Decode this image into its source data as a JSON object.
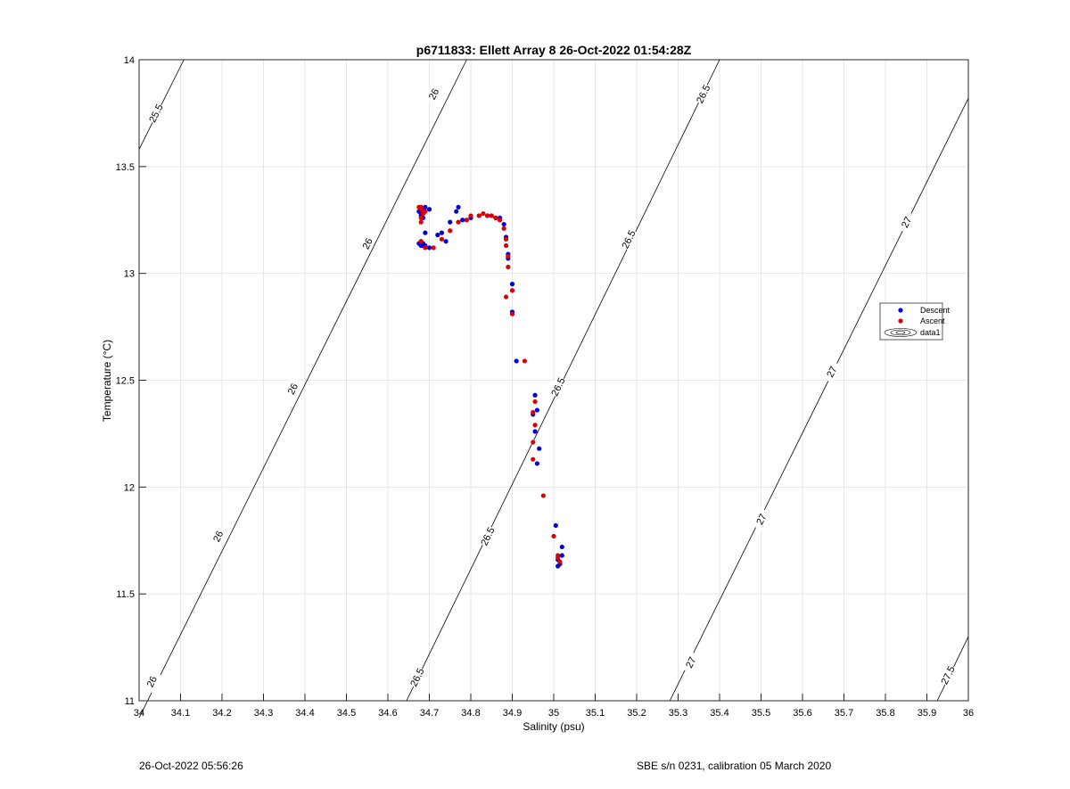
{
  "chart_data": {
    "type": "scatter",
    "title": "p6711833: Ellett Array 8 26-Oct-2022 01:54:28Z",
    "xlabel": "Salinity (psu)",
    "ylabel": "Temperature (°C)",
    "xlim": [
      34,
      36
    ],
    "ylim": [
      11,
      14
    ],
    "grid": true,
    "x_ticks": [
      "34",
      "34.1",
      "34.2",
      "34.3",
      "34.4",
      "34.5",
      "34.6",
      "34.7",
      "34.8",
      "34.9",
      "35",
      "35.1",
      "35.2",
      "35.3",
      "35.4",
      "35.5",
      "35.6",
      "35.7",
      "35.8",
      "35.9",
      "36"
    ],
    "y_ticks": [
      "11",
      "11.5",
      "12",
      "12.5",
      "13",
      "13.5",
      "14"
    ],
    "legend": {
      "placement": "right",
      "entries": [
        "Descent",
        "Ascent",
        "data1"
      ]
    },
    "colors": {
      "descent": "#0000dd",
      "ascent": "#dd0000",
      "contour": "#000000",
      "grid": "#e6e6e6"
    },
    "contours": [
      {
        "label": "25.5",
        "points": [
          [
            34.0,
            13.58
          ],
          [
            34.108,
            14.0
          ]
        ],
        "label_positions": [
          [
            34.04,
            13.75
          ]
        ]
      },
      {
        "label": "26",
        "points": [
          [
            34.0,
            10.92
          ],
          [
            34.79,
            14.0
          ]
        ],
        "label_positions": [
          [
            34.03,
            11.09
          ],
          [
            34.19,
            11.77
          ],
          [
            34.37,
            12.46
          ],
          [
            34.55,
            13.14
          ],
          [
            34.71,
            13.84
          ]
        ]
      },
      {
        "label": "26.5",
        "points": [
          [
            34.645,
            11.0
          ],
          [
            35.4,
            14.0
          ]
        ],
        "label_positions": [
          [
            34.67,
            11.11
          ],
          [
            34.84,
            11.77
          ],
          [
            35.01,
            12.47
          ],
          [
            35.18,
            13.16
          ],
          [
            35.36,
            13.84
          ]
        ]
      },
      {
        "label": "27",
        "points": [
          [
            35.28,
            11.0
          ],
          [
            36.0,
            13.82
          ]
        ],
        "label_positions": [
          [
            35.33,
            11.18
          ],
          [
            35.5,
            11.85
          ],
          [
            35.67,
            12.54
          ],
          [
            35.85,
            13.24
          ]
        ]
      },
      {
        "label": "27.5",
        "points": [
          [
            35.925,
            11.0
          ],
          [
            36.0,
            11.3
          ]
        ],
        "label_positions": [
          [
            35.95,
            11.12
          ]
        ]
      }
    ],
    "series": [
      {
        "name": "Descent",
        "x": [
          35.01,
          35.015,
          35.01,
          35.02,
          35.02,
          35.005,
          34.96,
          34.965,
          34.955,
          34.95,
          34.96,
          34.955,
          34.91,
          34.9,
          34.9,
          34.9,
          34.89,
          34.89,
          34.885,
          34.88,
          34.87,
          34.86,
          34.85,
          34.84,
          34.82,
          34.8,
          34.78,
          34.77,
          34.765,
          34.75,
          34.74,
          34.73,
          34.72,
          34.7,
          34.69,
          34.685,
          34.68,
          34.675,
          34.68,
          34.685,
          34.69,
          34.685,
          34.68,
          34.68,
          34.675,
          34.685,
          34.7,
          34.69,
          34.68
        ],
        "y": [
          11.63,
          11.64,
          11.66,
          11.68,
          11.72,
          11.82,
          12.11,
          12.18,
          12.26,
          12.34,
          12.36,
          12.43,
          12.59,
          12.82,
          12.92,
          12.95,
          13.09,
          13.07,
          13.17,
          13.23,
          13.26,
          13.26,
          13.27,
          13.27,
          13.27,
          13.26,
          13.25,
          13.31,
          13.29,
          13.24,
          13.15,
          13.19,
          13.18,
          13.12,
          13.13,
          13.14,
          13.15,
          13.14,
          13.13,
          13.13,
          13.19,
          13.26,
          13.27,
          13.28,
          13.29,
          13.3,
          13.3,
          13.31,
          13.31
        ]
      },
      {
        "name": "Ascent",
        "x": [
          35.015,
          35.01,
          35.01,
          35.0,
          34.975,
          34.95,
          34.95,
          34.955,
          34.95,
          34.955,
          34.93,
          34.9,
          34.9,
          34.885,
          34.89,
          34.89,
          34.885,
          34.885,
          34.88,
          34.87,
          34.86,
          34.85,
          34.84,
          34.83,
          34.82,
          34.8,
          34.79,
          34.77,
          34.75,
          34.73,
          34.71,
          34.69,
          34.68,
          34.68,
          34.68,
          34.685,
          34.69,
          34.68,
          34.675,
          34.68
        ],
        "y": [
          11.65,
          11.67,
          11.68,
          11.77,
          11.96,
          12.13,
          12.21,
          12.29,
          12.35,
          12.4,
          12.59,
          12.81,
          12.92,
          12.89,
          13.03,
          13.08,
          13.13,
          13.16,
          13.21,
          13.25,
          13.26,
          13.27,
          13.27,
          13.28,
          13.27,
          13.27,
          13.25,
          13.24,
          13.2,
          13.16,
          13.12,
          13.12,
          13.15,
          13.24,
          13.26,
          13.28,
          13.29,
          13.3,
          13.31,
          13.31
        ]
      }
    ]
  },
  "footer": {
    "left": "26-Oct-2022 05:56:26",
    "right": "SBE s/n 0231, calibration 05 March 2020"
  }
}
